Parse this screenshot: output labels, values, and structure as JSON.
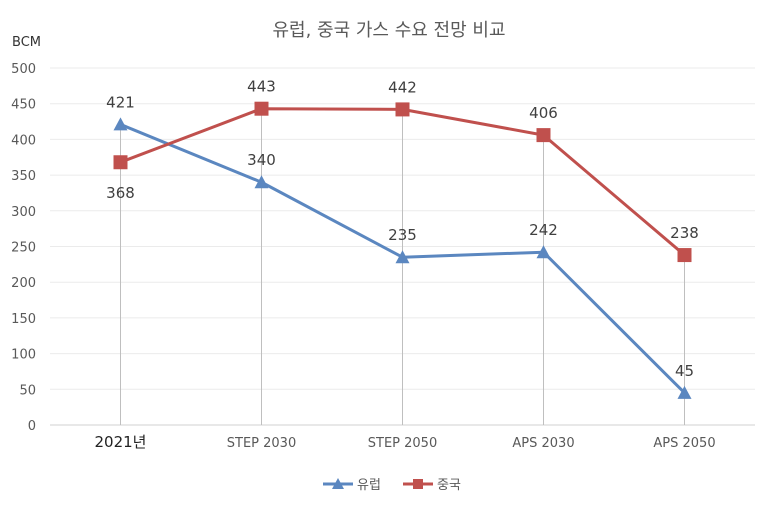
{
  "chart_data": {
    "type": "line",
    "title": "유럽, 중국 가스 수요 전망 비교",
    "ylabel": "BCM",
    "xlabel": "",
    "categories": [
      "2021년",
      "STEP 2030",
      "STEP 2050",
      "APS 2030",
      "APS 2050"
    ],
    "ylim": [
      0,
      500
    ],
    "yticks": [
      0,
      50,
      100,
      150,
      200,
      250,
      300,
      350,
      400,
      450,
      500
    ],
    "grid": true,
    "legend_position": "bottom",
    "series": [
      {
        "name": "유럽",
        "values": [
          421,
          340,
          235,
          242,
          45
        ],
        "color": "#5B87C0",
        "marker": "triangle"
      },
      {
        "name": "중국",
        "values": [
          368,
          443,
          442,
          406,
          238
        ],
        "color": "#C0504D",
        "marker": "square"
      }
    ]
  }
}
